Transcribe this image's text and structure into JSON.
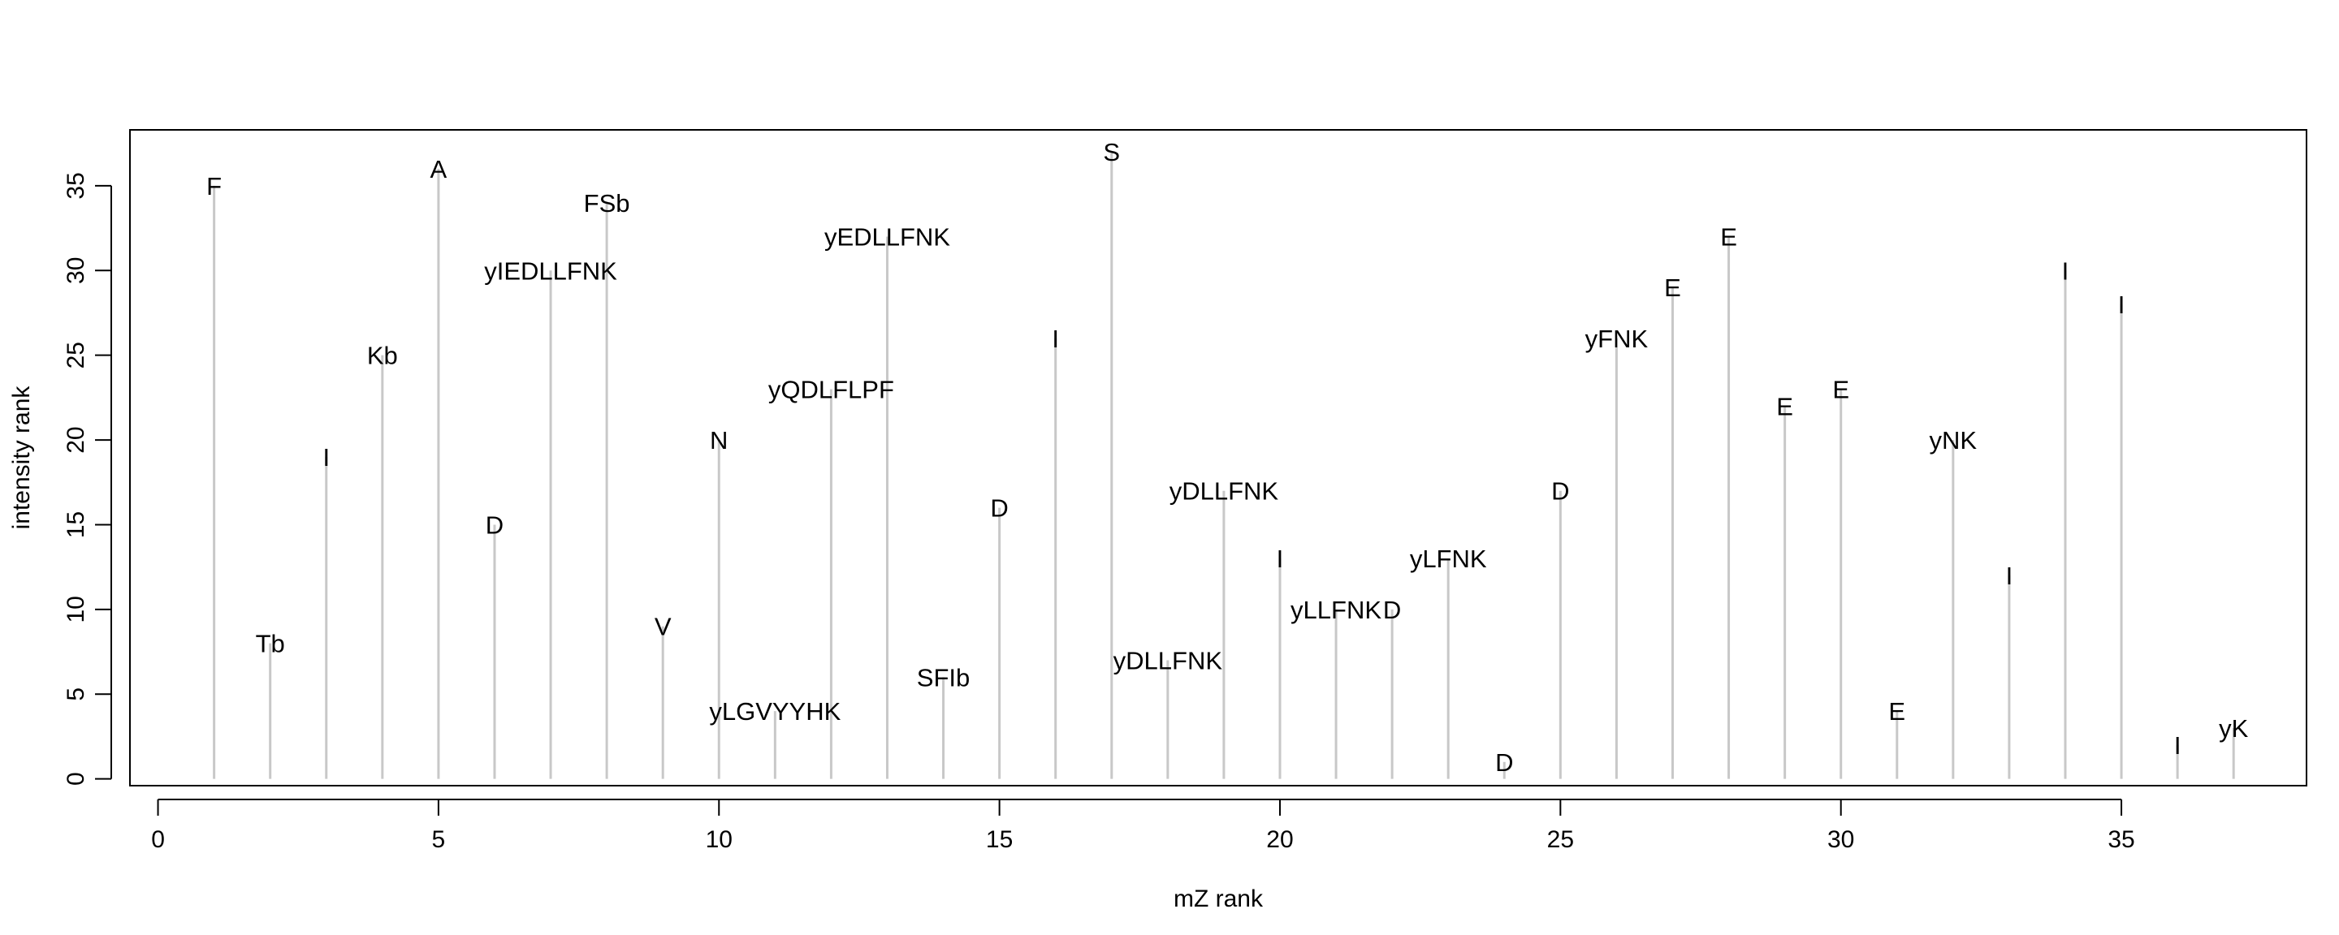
{
  "chart_data": {
    "type": "stem",
    "xlabel": "mZ rank",
    "ylabel": "intensity rank",
    "xlim": [
      -0.5,
      38.3
    ],
    "ylim": [
      -0.4,
      38.3
    ],
    "xticks": [
      0,
      5,
      10,
      15,
      20,
      25,
      30,
      35
    ],
    "yticks": [
      0,
      5,
      10,
      15,
      20,
      25,
      30,
      35
    ],
    "grid": false,
    "legend": "none",
    "stem_color": "#c8c8c8",
    "points": [
      {
        "x": 1,
        "y": 35,
        "label": "F"
      },
      {
        "x": 2,
        "y": 8,
        "label": "Tb"
      },
      {
        "x": 3,
        "y": 19,
        "label": "I"
      },
      {
        "x": 4,
        "y": 25,
        "label": "Kb"
      },
      {
        "x": 5,
        "y": 36,
        "label": "A"
      },
      {
        "x": 6,
        "y": 15,
        "label": "D"
      },
      {
        "x": 7,
        "y": 30,
        "label": "yIEDLLFNK"
      },
      {
        "x": 8,
        "y": 34,
        "label": "FSb"
      },
      {
        "x": 9,
        "y": 9,
        "label": "V"
      },
      {
        "x": 10,
        "y": 20,
        "label": "N"
      },
      {
        "x": 11,
        "y": 4,
        "label": "yLGVYYHK"
      },
      {
        "x": 12,
        "y": 23,
        "label": "yQDLFLPF"
      },
      {
        "x": 13,
        "y": 32,
        "label": "yEDLLFNK"
      },
      {
        "x": 14,
        "y": 6,
        "label": "SFIb"
      },
      {
        "x": 15,
        "y": 16,
        "label": "D"
      },
      {
        "x": 16,
        "y": 26,
        "label": "I"
      },
      {
        "x": 17,
        "y": 37,
        "label": "S"
      },
      {
        "x": 18,
        "y": 7,
        "label": "yDLLFNK"
      },
      {
        "x": 19,
        "y": 17,
        "label": "yDLLFNK"
      },
      {
        "x": 20,
        "y": 13,
        "label": "I"
      },
      {
        "x": 21,
        "y": 10,
        "label": "yLLFNK"
      },
      {
        "x": 22,
        "y": 10,
        "label": "D"
      },
      {
        "x": 23,
        "y": 13,
        "label": "yLFNK"
      },
      {
        "x": 24,
        "y": 1,
        "label": "D"
      },
      {
        "x": 25,
        "y": 17,
        "label": "D"
      },
      {
        "x": 26,
        "y": 26,
        "label": "yFNK"
      },
      {
        "x": 27,
        "y": 29,
        "label": "E"
      },
      {
        "x": 28,
        "y": 32,
        "label": "E"
      },
      {
        "x": 29,
        "y": 22,
        "label": "E"
      },
      {
        "x": 30,
        "y": 23,
        "label": "E"
      },
      {
        "x": 31,
        "y": 4,
        "label": "E"
      },
      {
        "x": 32,
        "y": 20,
        "label": "yNK"
      },
      {
        "x": 33,
        "y": 12,
        "label": "I"
      },
      {
        "x": 34,
        "y": 30,
        "label": "I"
      },
      {
        "x": 35,
        "y": 28,
        "label": "I"
      },
      {
        "x": 36,
        "y": 2,
        "label": "I"
      },
      {
        "x": 37,
        "y": 3,
        "label": "yK"
      }
    ]
  }
}
